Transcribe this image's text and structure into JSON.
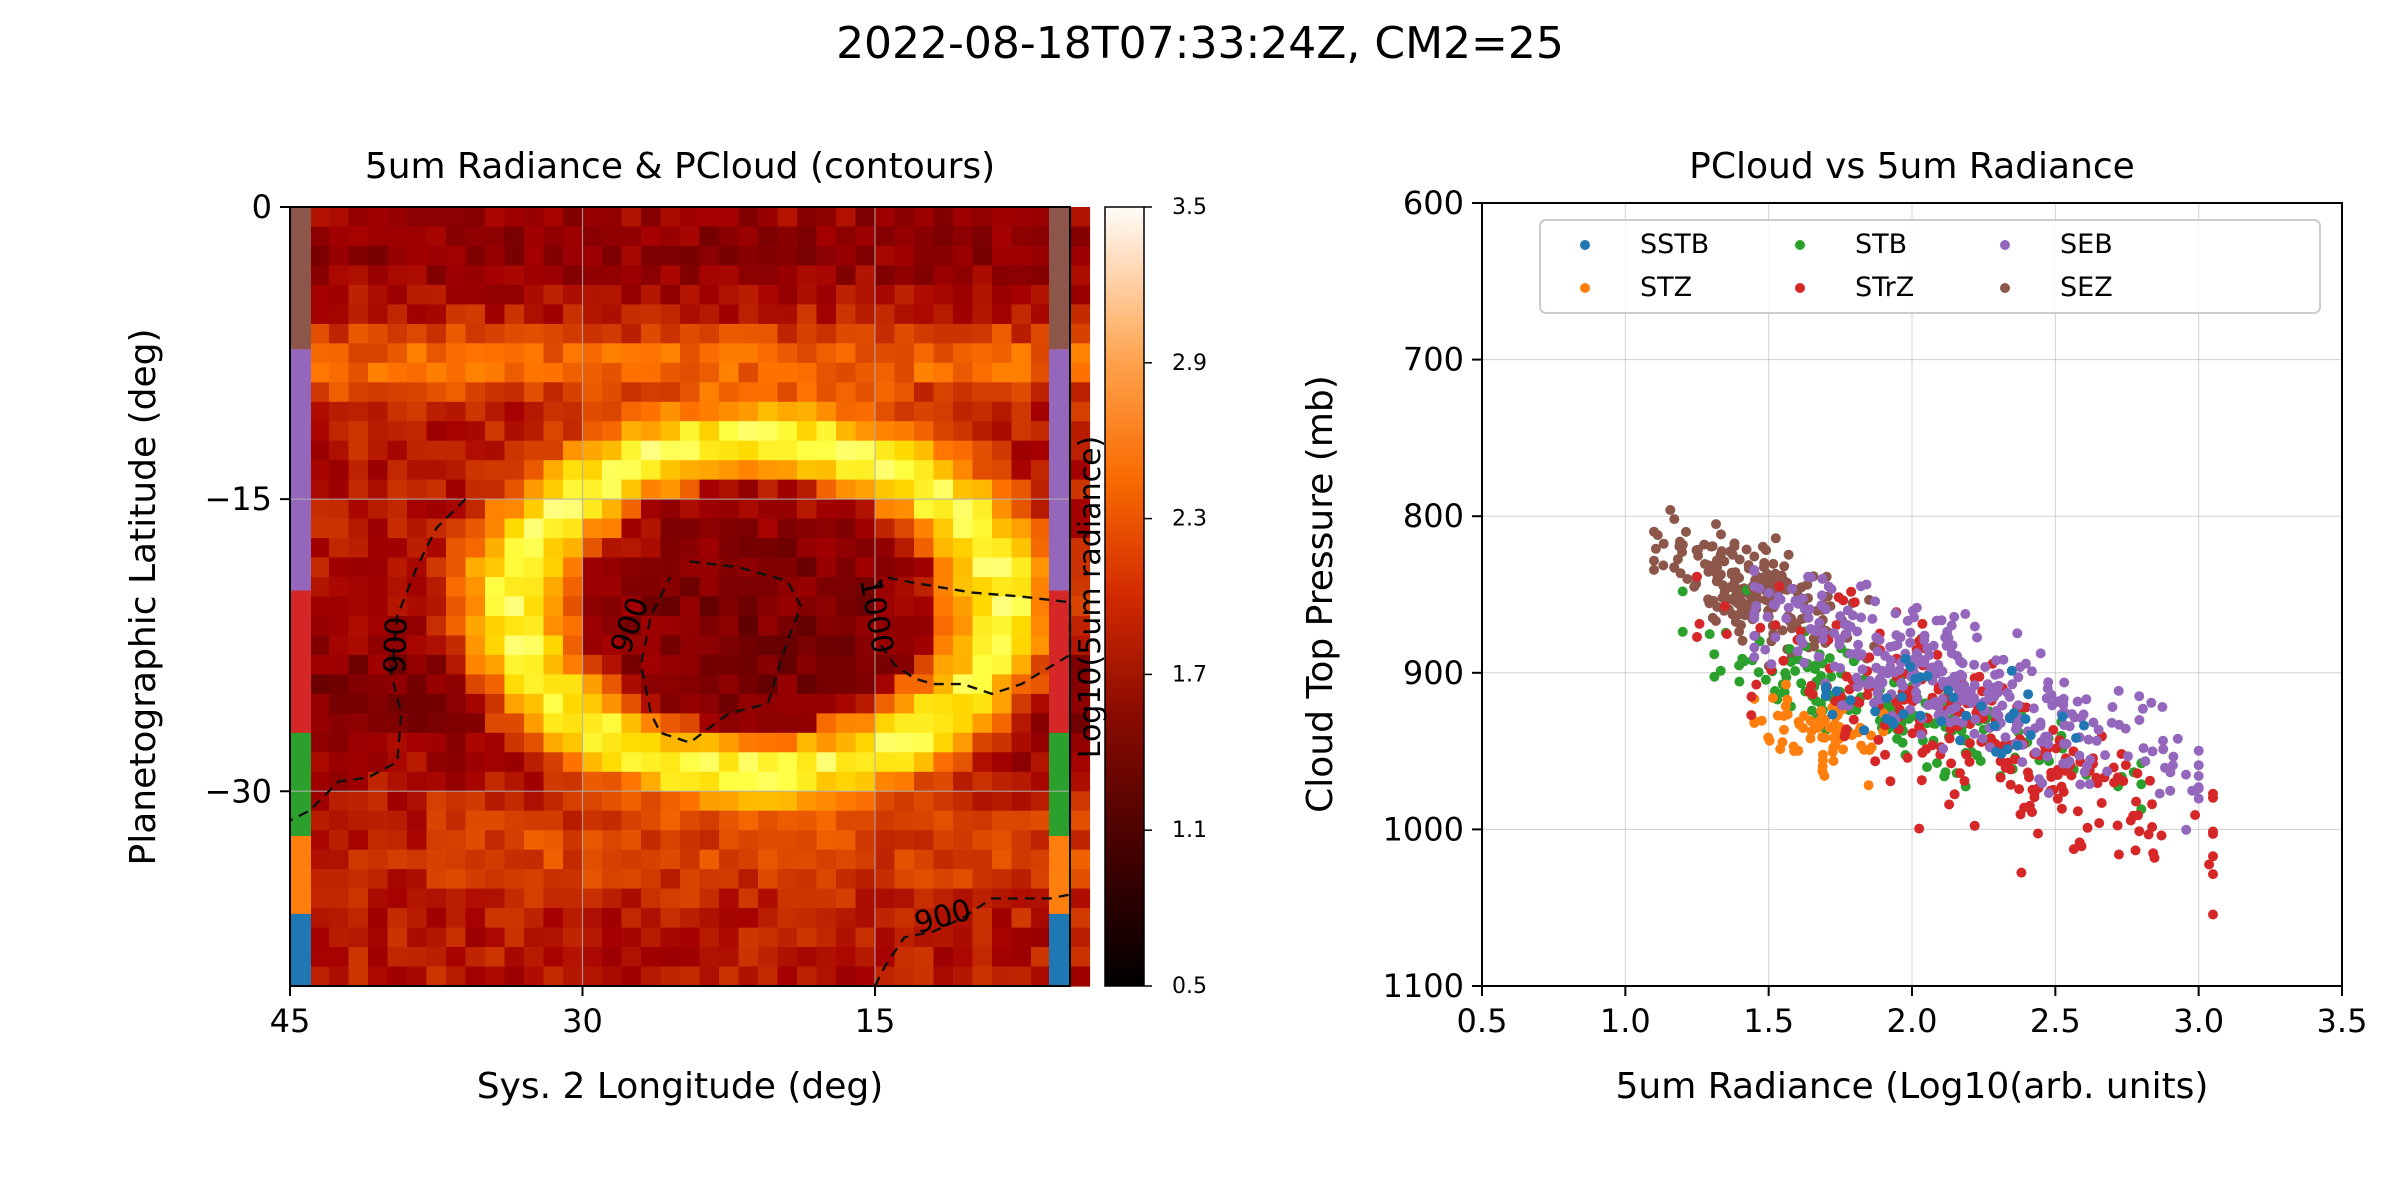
{
  "figure_title": "2022-08-18T07:33:24Z, CM2=25",
  "chart_data": [
    {
      "type": "heatmap",
      "title": "5um Radiance & PCloud (contours)",
      "xlabel": "Sys. 2 Longitude (deg)",
      "ylabel": "Planetographic Latitude (deg)",
      "xlim": [
        45,
        5
      ],
      "ylim": [
        -40,
        0
      ],
      "xticks": [
        45,
        30,
        15
      ],
      "yticks": [
        0,
        -15,
        -30
      ],
      "xtick_labels": [
        "45",
        "30",
        "15"
      ],
      "ytick_labels": [
        "0",
        "−15",
        "−30"
      ],
      "grid": true,
      "colormap": "gist_heat",
      "colorbar": {
        "label": "Log10(5um radiance)",
        "range": [
          0.5,
          3.5
        ],
        "ticks": [
          "3.5",
          "2.9",
          "2.3",
          "1.7",
          "1.1",
          "0.5"
        ]
      },
      "grid_resolution_deg": [
        1,
        1
      ],
      "features": {
        "ring_center_lon": 21,
        "ring_center_lat": -20.5,
        "ring_radius_lon": 12.5,
        "ring_radius_lat": 8.5,
        "ring_peak_log_radiance": 3.0,
        "interior_log_radiance": 1.35,
        "background_log_radiance": 1.7,
        "bright_band_lat": -8,
        "dark_band_lat": -25
      },
      "latitude_band_strip": [
        {
          "band": "SEZ",
          "lat_from": 0,
          "lat_to": -7.3,
          "color": "#8c564b"
        },
        {
          "band": "SEB",
          "lat_from": -7.3,
          "lat_to": -19.7,
          "color": "#9467bd"
        },
        {
          "band": "STrZ",
          "lat_from": -19.7,
          "lat_to": -27,
          "color": "#d62728"
        },
        {
          "band": "STB",
          "lat_from": -27,
          "lat_to": -32.3,
          "color": "#2ca02c"
        },
        {
          "band": "STZ",
          "lat_from": -32.3,
          "lat_to": -36.3,
          "color": "#ff7f0e"
        },
        {
          "band": "SSTB",
          "lat_from": -36.3,
          "lat_to": -40,
          "color": "#1f77b4"
        }
      ],
      "contours": [
        {
          "level": 900,
          "label": "900",
          "label_lon": 27.5,
          "label_lat": -21.5,
          "label_rotation": -70,
          "points": [
            [
              24.5,
              -18.2
            ],
            [
              22,
              -18.5
            ],
            [
              19.5,
              -19.2
            ],
            [
              18.8,
              -20.5
            ],
            [
              19.5,
              -22.3
            ],
            [
              20.5,
              -25.5
            ],
            [
              22.5,
              -26
            ],
            [
              24.5,
              -27.5
            ],
            [
              26,
              -27
            ],
            [
              26.5,
              -26
            ],
            [
              27,
              -23.5
            ],
            [
              26.5,
              -21
            ],
            [
              25.5,
              -19
            ]
          ]
        },
        {
          "level": 900,
          "label": "900",
          "label_lon": 39.5,
          "label_lat": -22.5,
          "label_rotation": -88,
          "points": [
            [
              36,
              -15
            ],
            [
              37.5,
              -16.5
            ],
            [
              38.5,
              -18.5
            ],
            [
              39.5,
              -21
            ],
            [
              39.8,
              -24
            ],
            [
              39.3,
              -26
            ],
            [
              39.5,
              -28.5
            ],
            [
              41,
              -29.3
            ],
            [
              42.5,
              -29.5
            ],
            [
              44,
              -31
            ],
            [
              45,
              -31.5
            ]
          ]
        },
        {
          "level": 1000,
          "label": "1000",
          "label_lon": 15,
          "label_lat": -21,
          "label_rotation": 80,
          "points": [
            [
              15,
              -19.5
            ],
            [
              14.5,
              -19
            ],
            [
              13,
              -19.3
            ],
            [
              10,
              -19.8
            ],
            [
              7.5,
              -20
            ],
            [
              5,
              -20.3
            ],
            [
              5,
              -23
            ],
            [
              7.5,
              -24.5
            ],
            [
              9,
              -25
            ],
            [
              10.5,
              -24.5
            ],
            [
              12,
              -24.5
            ],
            [
              13,
              -24.2
            ],
            [
              14,
              -23.5
            ],
            [
              14.7,
              -22.5
            ]
          ]
        },
        {
          "level": 900,
          "label": "900",
          "label_lon": 11.5,
          "label_lat": -36.5,
          "label_rotation": -15,
          "points": [
            [
              15,
              -40
            ],
            [
              14.5,
              -39
            ],
            [
              13.5,
              -37.5
            ],
            [
              12,
              -37.2
            ],
            [
              10.5,
              -36.5
            ],
            [
              9,
              -35.5
            ],
            [
              7.5,
              -35.5
            ],
            [
              6,
              -35.5
            ],
            [
              5,
              -35.3
            ]
          ]
        }
      ]
    },
    {
      "type": "scatter",
      "title": "PCloud vs 5um Radiance",
      "xlabel": "5um Radiance (Log10(arb. units)",
      "ylabel": "Cloud Top Pressure (mb)",
      "xlim": [
        0.5,
        3.5
      ],
      "ylim": [
        1100,
        600
      ],
      "y_inverted": true,
      "xticks": [
        "0.5",
        "1.0",
        "1.5",
        "2.0",
        "2.5",
        "3.0",
        "3.5"
      ],
      "yticks": [
        "600",
        "700",
        "800",
        "900",
        "1000",
        "1100"
      ],
      "grid": true,
      "legend_position": "top-right",
      "legend_columns": 4,
      "series": [
        {
          "name": "SSTB",
          "color": "#1f77b4",
          "count": 40,
          "x_range": [
            1.7,
            2.6
          ],
          "center": [
            2.1,
            925
          ],
          "spread": [
            0.25,
            15
          ],
          "slope": 45
        },
        {
          "name": "STZ",
          "color": "#ff7f0e",
          "count": 70,
          "x_range": [
            1.45,
            1.9
          ],
          "center": [
            1.65,
            935
          ],
          "spread": [
            0.12,
            12
          ],
          "slope": 40
        },
        {
          "name": "STB",
          "color": "#2ca02c",
          "count": 170,
          "x_range": [
            1.2,
            2.8
          ],
          "center": [
            1.95,
            925
          ],
          "spread": [
            0.35,
            14
          ],
          "slope": 55
        },
        {
          "name": "STrZ",
          "color": "#d62728",
          "count": 240,
          "x_range": [
            1.25,
            3.05
          ],
          "center": [
            2.2,
            940
          ],
          "spread": [
            0.45,
            25
          ],
          "slope": 80
        },
        {
          "name": "SEB",
          "color": "#9467bd",
          "count": 340,
          "x_range": [
            1.45,
            3.0
          ],
          "center": [
            2.15,
            905
          ],
          "spread": [
            0.38,
            20
          ],
          "slope": 65
        },
        {
          "name": "SEZ",
          "color": "#8c564b",
          "count": 200,
          "x_range": [
            1.1,
            2.05
          ],
          "center": [
            1.45,
            848
          ],
          "spread": [
            0.18,
            15
          ],
          "slope": 75
        }
      ]
    }
  ]
}
